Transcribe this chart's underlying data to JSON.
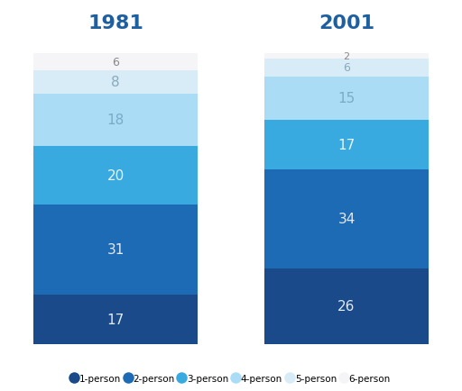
{
  "title_1981": "1981",
  "title_2001": "2001",
  "categories": [
    "1-person",
    "2-person",
    "3-person",
    "4-person",
    "5-person",
    "6-person"
  ],
  "values_1981": [
    17,
    31,
    20,
    18,
    8,
    6
  ],
  "values_2001": [
    26,
    34,
    17,
    15,
    6,
    2
  ],
  "bar_colors": [
    "#1a4a8a",
    "#1e6bb5",
    "#39aadf",
    "#aaddf5",
    "#d8ecf7",
    "#f5f5f8"
  ],
  "text_colors": [
    "#e0eaf5",
    "#e0eaf5",
    "#e8f4fb",
    "#7baac8",
    "#8aaabb",
    "#888888"
  ],
  "title_color": "#1e5fa0",
  "background_color": "#ffffff",
  "legend_colors": [
    "#1a4a8a",
    "#1e6bb5",
    "#39aadf",
    "#aaddf5",
    "#d8ecf7",
    "#f5f5f8"
  ],
  "ylim_max": 105
}
